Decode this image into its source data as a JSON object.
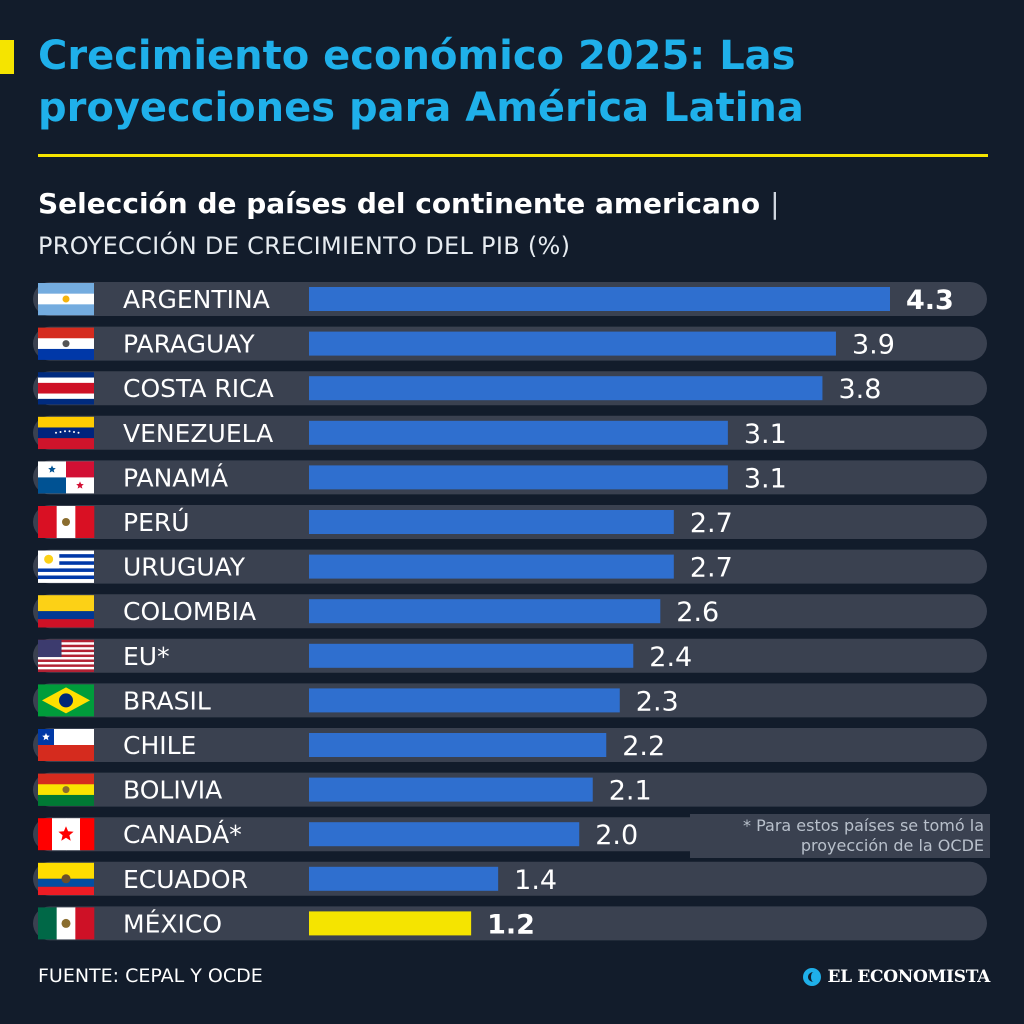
{
  "header": {
    "title": "Crecimiento económico 2025: Las proyecciones para América Latina",
    "subtitle": "Selección de países del continente americano",
    "separator": "|",
    "metric": "PROYECCIÓN DE CRECIMIENTO DEL PIB (%)"
  },
  "note": "* Para estos países se tomó la proyección de la OCDE",
  "source": "FUENTE: CEPAL Y OCDE",
  "logo": {
    "text": "EL ECONOMISTA"
  },
  "colors": {
    "bar": "#2f6fcf",
    "highlight_bar": "#f5e400",
    "track": "#3a4150",
    "title": "#1fb0ea",
    "background": "#121c2b"
  },
  "chart_data": {
    "type": "bar",
    "orientation": "horizontal",
    "title": "Crecimiento económico 2025: Las proyecciones para América Latina",
    "subtitle": "Selección de países del continente americano",
    "xlabel": "PROYECCIÓN DE CRECIMIENTO DEL PIB (%)",
    "ylabel": "",
    "xlim": [
      0,
      4.3
    ],
    "grid": false,
    "legend": "none",
    "categories": [
      "ARGENTINA",
      "PARAGUAY",
      "COSTA RICA",
      "VENEZUELA",
      "PANAMÁ",
      "PERÚ",
      "URUGUAY",
      "COLOMBIA",
      "EU*",
      "BRASIL",
      "CHILE",
      "BOLIVIA",
      "CANADÁ*",
      "ECUADOR",
      "MÉXICO"
    ],
    "values": [
      4.3,
      3.9,
      3.8,
      3.1,
      3.1,
      2.7,
      2.7,
      2.6,
      2.4,
      2.3,
      2.2,
      2.1,
      2.0,
      1.4,
      1.2
    ],
    "value_labels": [
      "4.3",
      "3.9",
      "3.8",
      "3.1",
      "3.1",
      "2.7",
      "2.7",
      "2.6",
      "2.4",
      "2.3",
      "2.2",
      "2.1",
      "2.0",
      "1.4",
      "1.2"
    ],
    "highlighted": [
      "ARGENTINA",
      "MÉXICO"
    ],
    "flags": [
      "argentina-flag",
      "paraguay-flag",
      "costa-rica-flag",
      "venezuela-flag",
      "panama-flag",
      "peru-flag",
      "uruguay-flag",
      "colombia-flag",
      "usa-flag",
      "brazil-flag",
      "chile-flag",
      "bolivia-flag",
      "canada-flag",
      "ecuador-flag",
      "mexico-flag"
    ]
  }
}
